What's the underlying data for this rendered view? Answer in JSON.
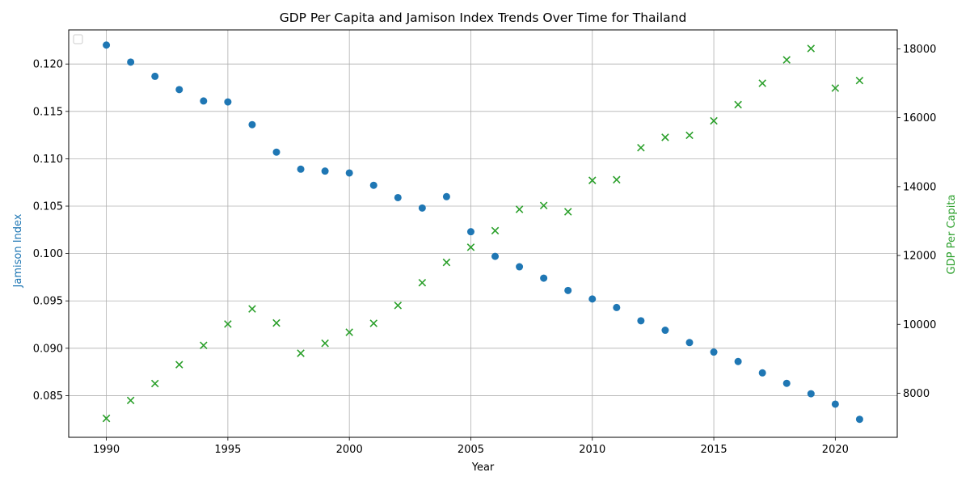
{
  "chart_data": {
    "type": "scatter",
    "title": "GDP Per Capita and Jamison Index Trends Over Time for Thailand",
    "xlabel": "Year",
    "ylabel_left": "Jamison Index",
    "ylabel_right": "GDP Per Capita",
    "xlim": [
      1988.45,
      2022.55
    ],
    "ylim_left": [
      0.0806,
      0.1236
    ],
    "ylim_right": [
      6720,
      18550
    ],
    "xticks": [
      1990,
      1995,
      2000,
      2005,
      2010,
      2015,
      2020
    ],
    "yticks_left": [
      0.085,
      0.09,
      0.095,
      0.1,
      0.105,
      0.11,
      0.115,
      0.12
    ],
    "yticks_right": [
      8000,
      10000,
      12000,
      14000,
      16000,
      18000
    ],
    "grid": true,
    "legend": "top-left (empty)",
    "colors": {
      "jamison": "#1f77b4",
      "gdp": "#2ca02c"
    },
    "x": [
      1990,
      1991,
      1992,
      1993,
      1994,
      1995,
      1996,
      1997,
      1998,
      1999,
      2000,
      2001,
      2002,
      2003,
      2004,
      2005,
      2006,
      2007,
      2008,
      2009,
      2010,
      2011,
      2012,
      2013,
      2014,
      2015,
      2016,
      2017,
      2018,
      2019,
      2020,
      2021
    ],
    "series": [
      {
        "name": "Jamison Index",
        "axis": "left",
        "marker": "circle",
        "values": [
          0.122,
          0.1202,
          0.1187,
          0.1173,
          0.1161,
          0.116,
          0.1136,
          0.1107,
          0.1089,
          0.1087,
          0.1085,
          0.1072,
          0.1059,
          0.1048,
          0.106,
          0.1023,
          0.0997,
          0.0986,
          0.0974,
          0.0961,
          0.0952,
          0.0943,
          0.0929,
          0.0919,
          0.0906,
          0.0896,
          0.0886,
          0.0874,
          0.0863,
          0.0852,
          0.0841,
          0.0825
        ]
      },
      {
        "name": "GDP Per Capita",
        "axis": "right",
        "marker": "x",
        "values": [
          7270,
          7790,
          8280,
          8830,
          9390,
          10010,
          10450,
          10040,
          9160,
          9450,
          9770,
          10030,
          10550,
          11210,
          11800,
          12240,
          12720,
          13340,
          13450,
          13270,
          14180,
          14200,
          15130,
          15430,
          15490,
          15910,
          16380,
          17000,
          17680,
          18010,
          16860,
          17080
        ]
      }
    ]
  }
}
